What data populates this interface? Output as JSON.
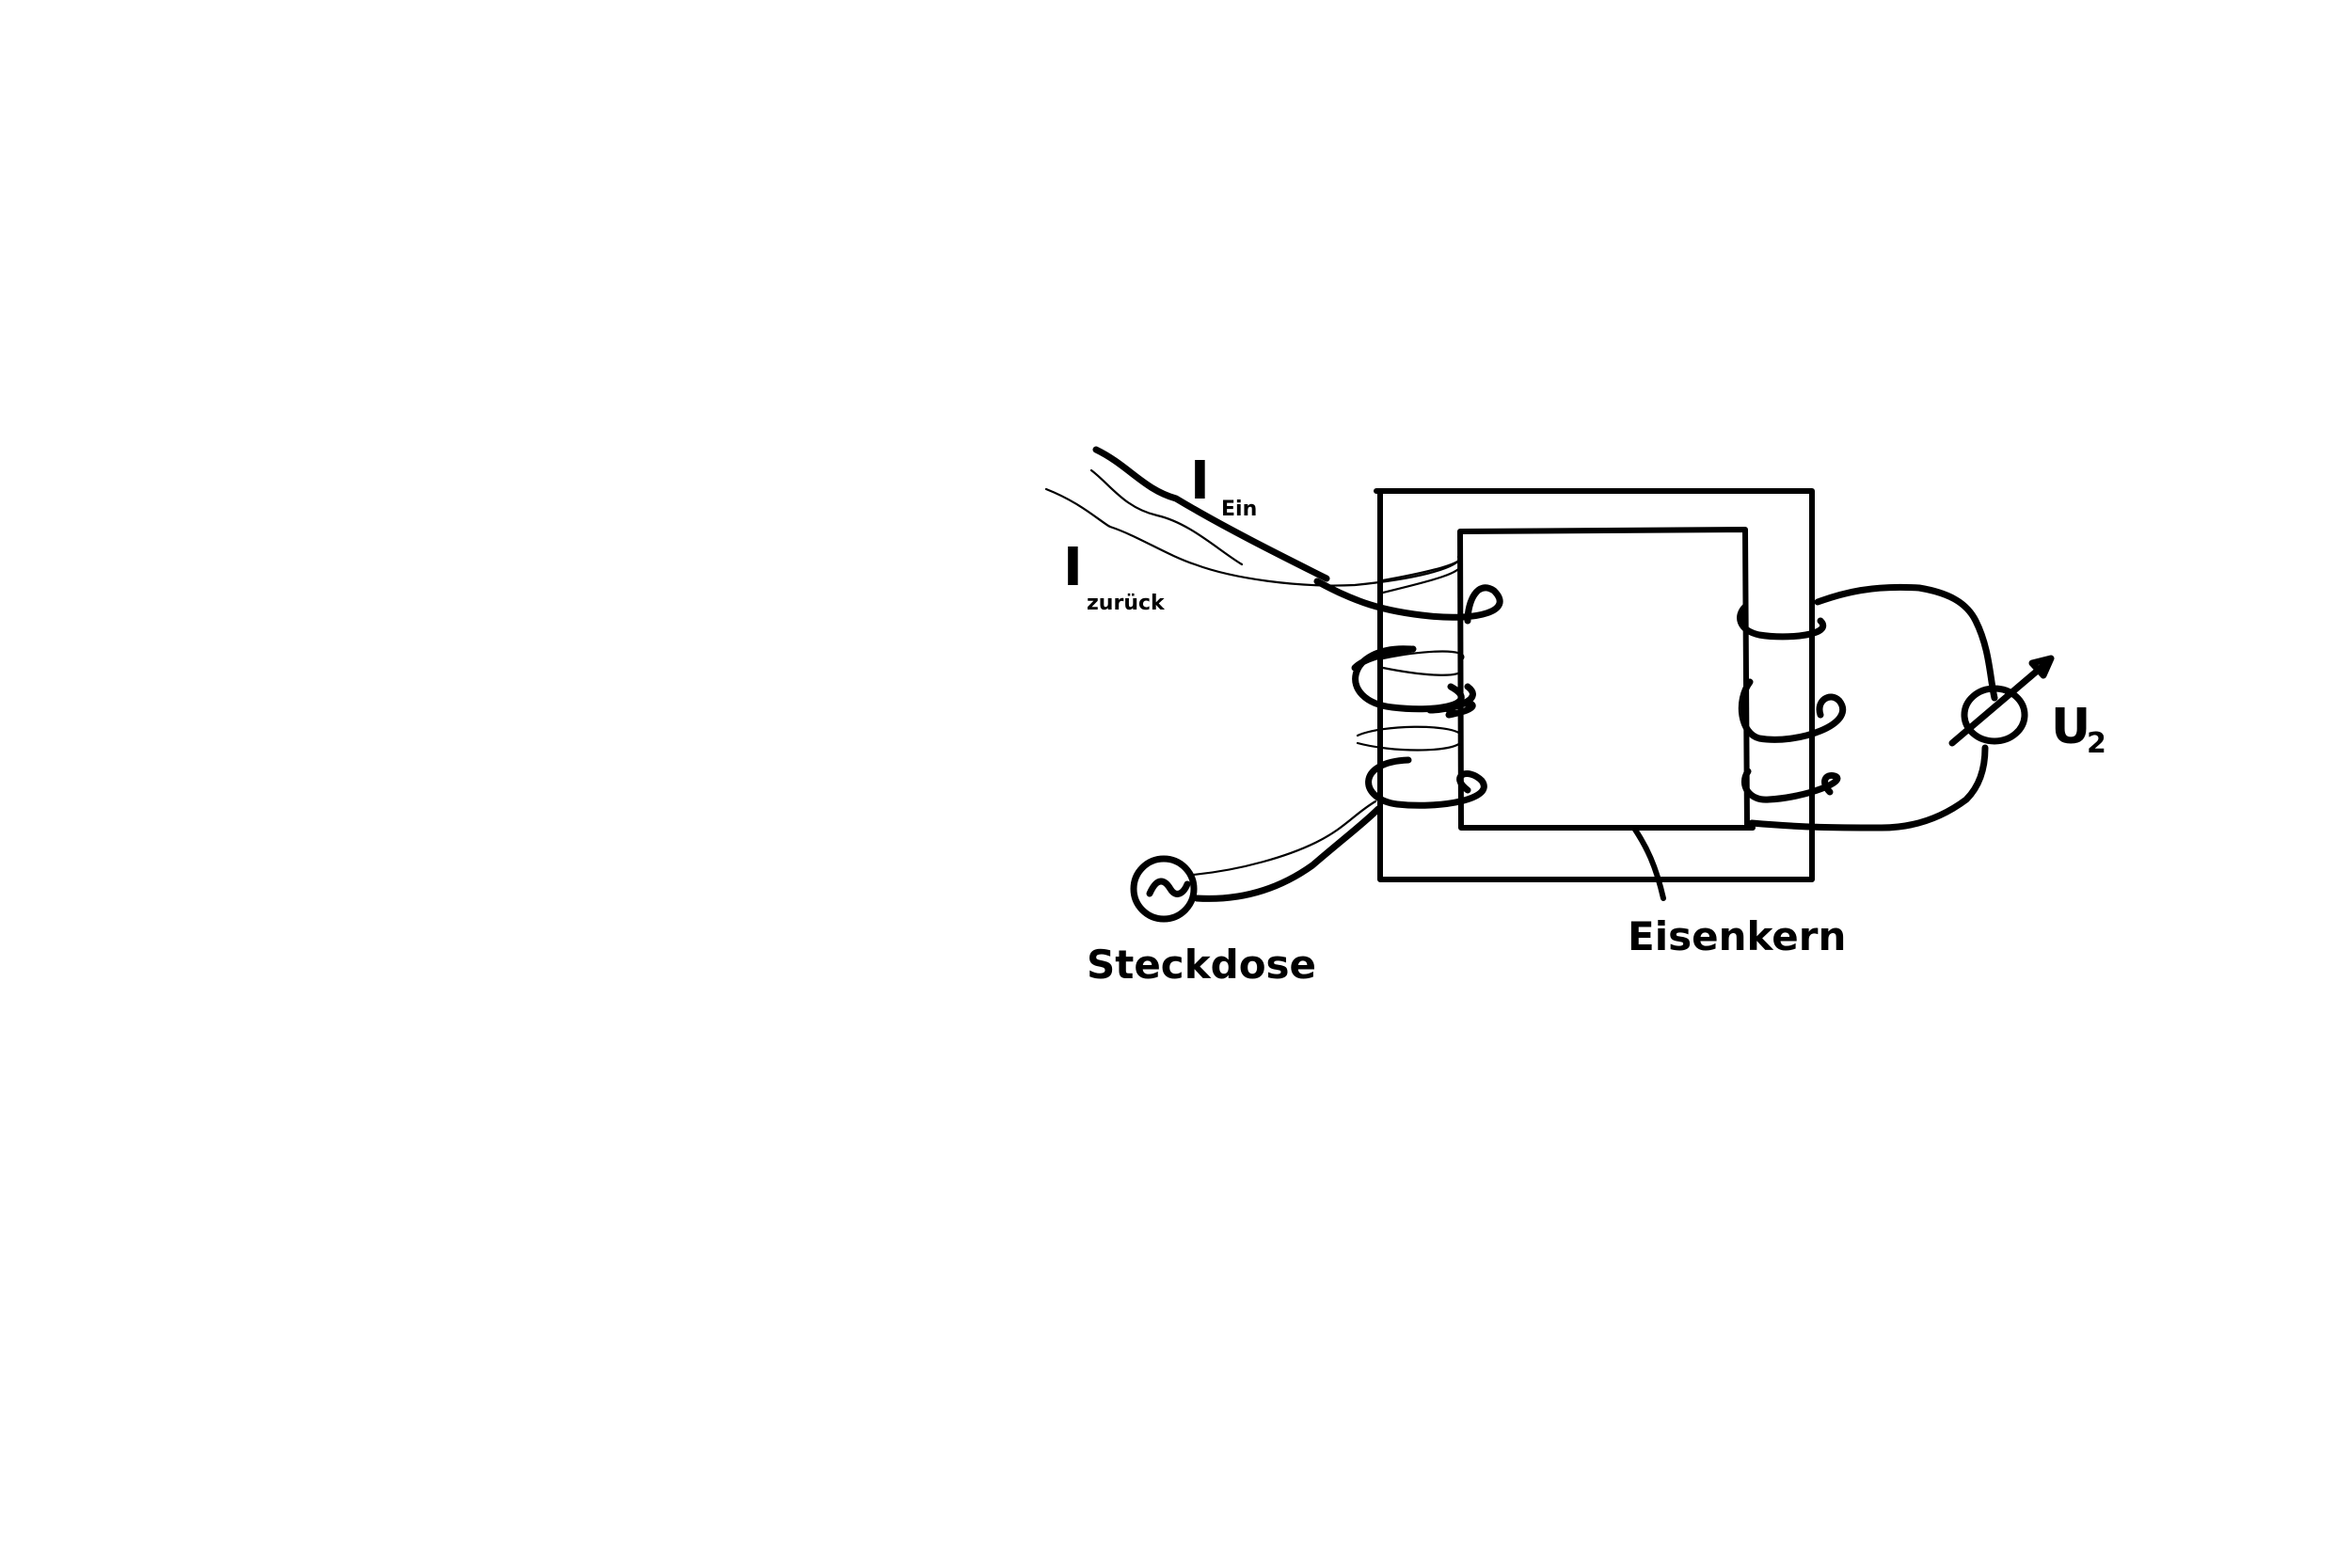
{
  "diagram": {
    "labels": {
      "i_in_main": "I",
      "i_in_sub": "Ein",
      "i_back_main": "I",
      "i_back_sub": "zurück",
      "socket": "Steckdose",
      "core": "Eisenkern",
      "u2_main": "U",
      "u2_sub": "2",
      "ac_symbol": "~"
    },
    "colors": {
      "ink": "#000000",
      "background": "#ffffff"
    },
    "icons": {
      "ac_source": "ac-source-icon",
      "voltmeter": "voltmeter-icon"
    }
  }
}
